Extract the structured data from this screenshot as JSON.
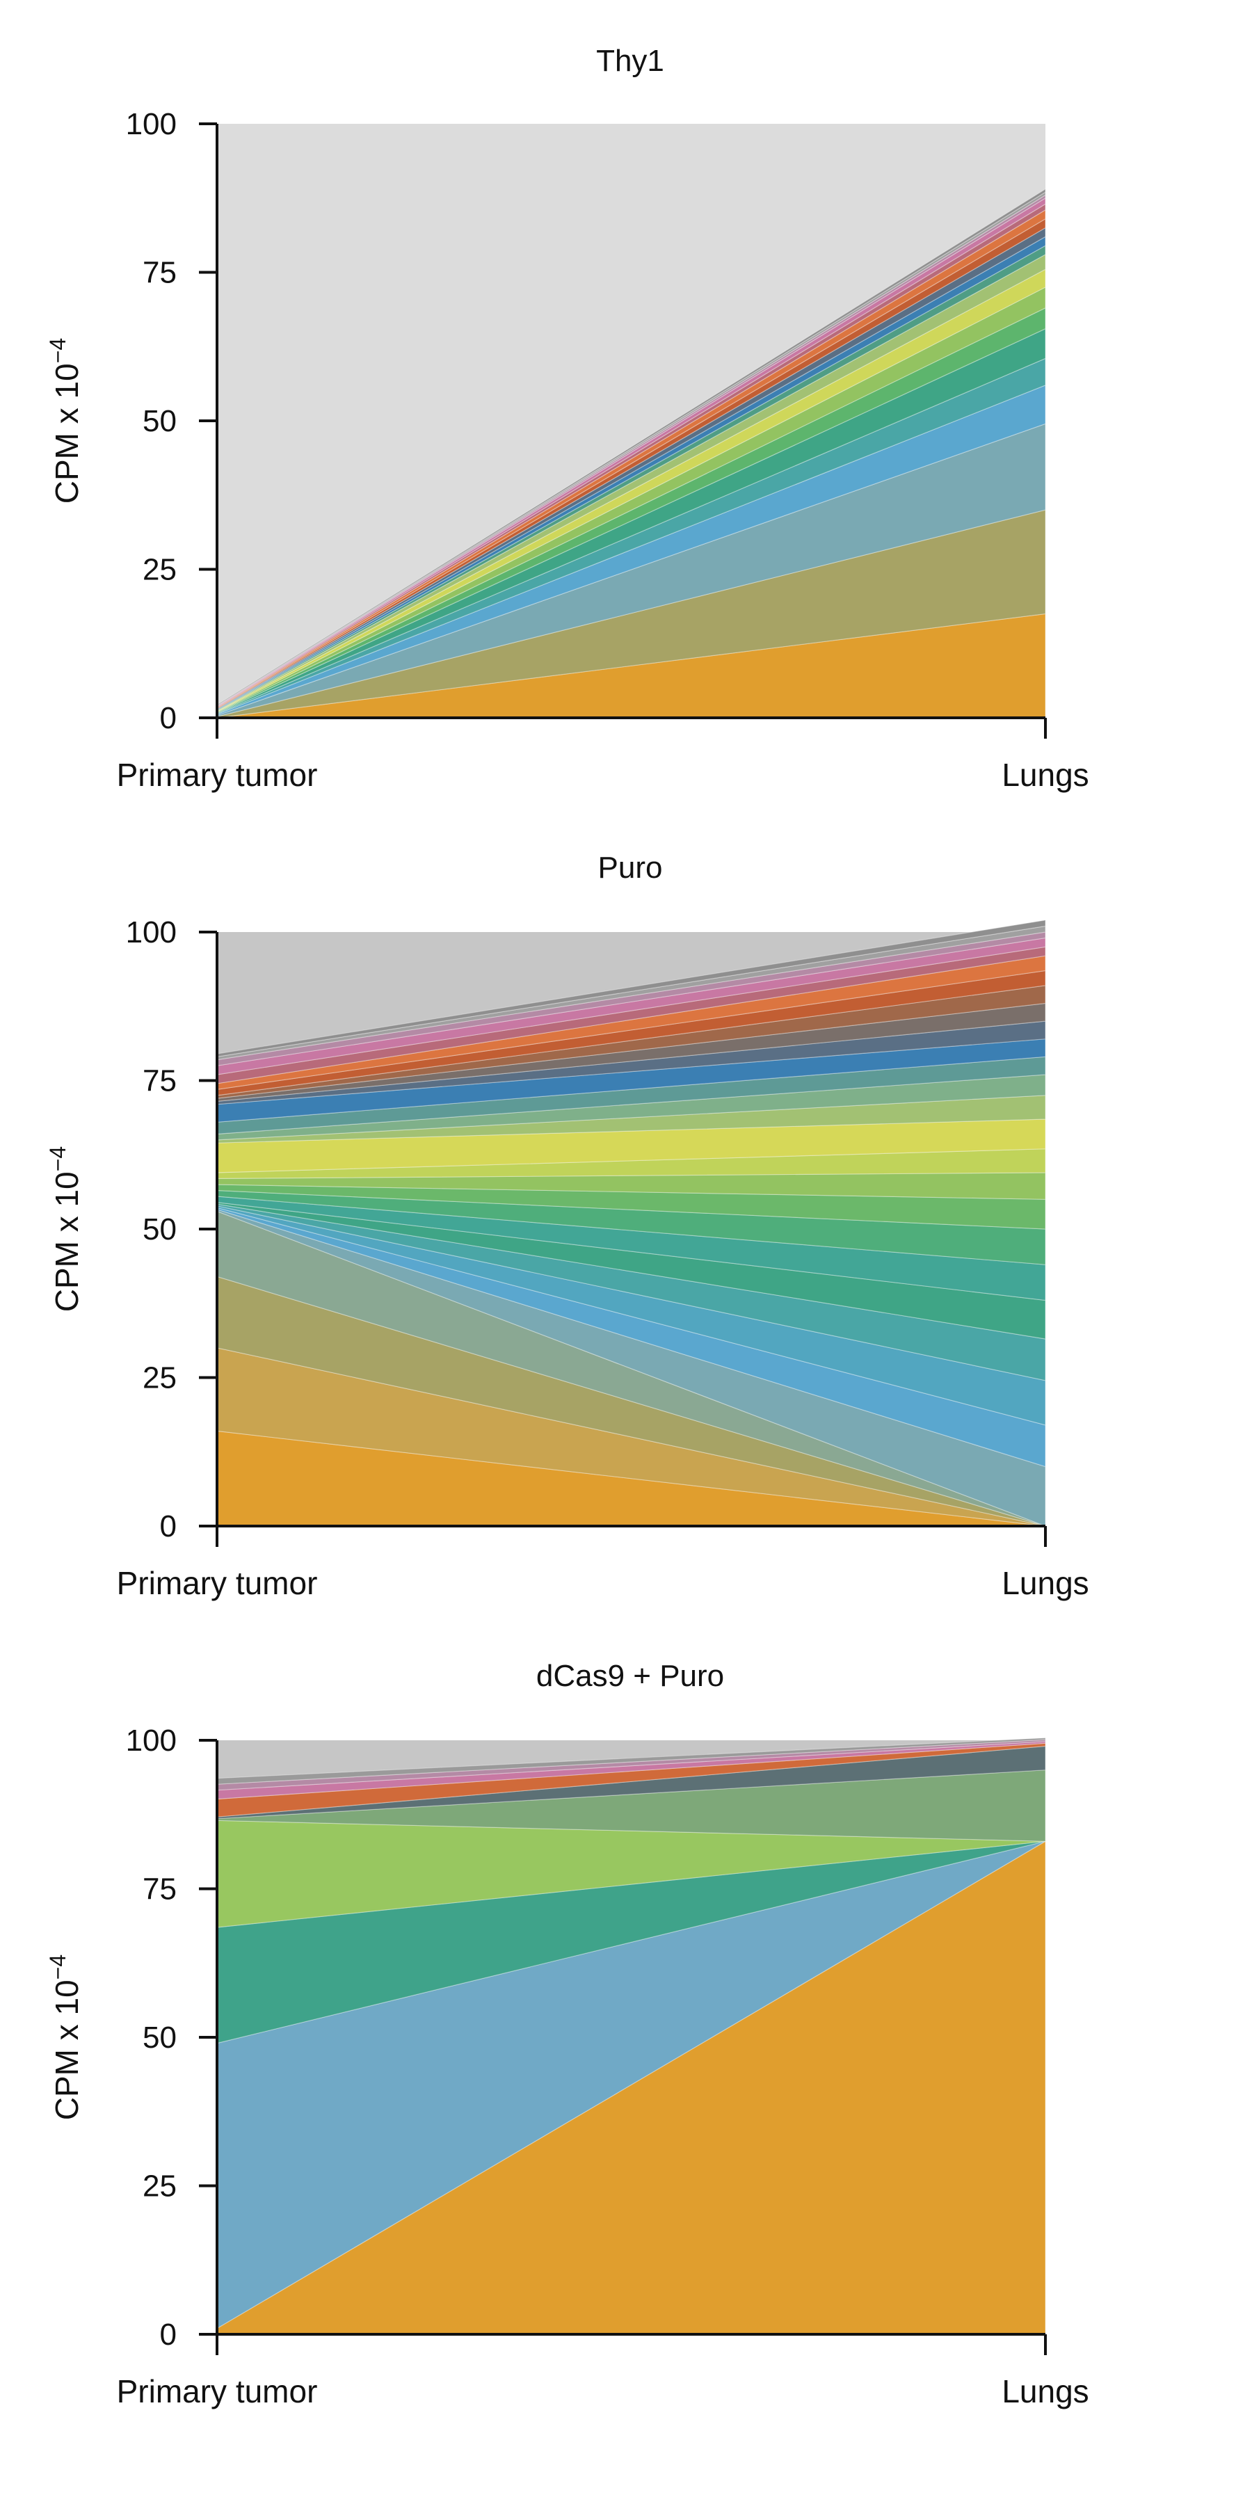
{
  "chart_data": [
    {
      "type": "area",
      "title": "Thy1",
      "ylabel": "CPM x 10",
      "ylabel_exponent": "−4",
      "categories": [
        "Primary tumor",
        "Lungs"
      ],
      "ylim": [
        0,
        100
      ],
      "yticks": [
        "0",
        "25",
        "50",
        "75",
        "100"
      ],
      "grid": false,
      "background": "#dcdcdc",
      "series": [
        {
          "values": [
            0.0,
            17.5
          ],
          "color": "#e09e2e"
        },
        {
          "values": [
            0.2,
            17.5
          ],
          "color": "#a7a365"
        },
        {
          "values": [
            0.2,
            14.5
          ],
          "color": "#7aa9b3"
        },
        {
          "values": [
            0.2,
            6.5
          ],
          "color": "#5aa7cf"
        },
        {
          "values": [
            0.1,
            4.5
          ],
          "color": "#4aa6a6"
        },
        {
          "values": [
            0.1,
            5.0
          ],
          "color": "#3fa586"
        },
        {
          "values": [
            0.1,
            3.5
          ],
          "color": "#5db56d"
        },
        {
          "values": [
            0.1,
            3.5
          ],
          "color": "#93c361"
        },
        {
          "values": [
            0.1,
            3.0
          ],
          "color": "#cfd75a"
        },
        {
          "values": [
            0.1,
            2.5
          ],
          "color": "#a2c173"
        },
        {
          "values": [
            0.1,
            1.5
          ],
          "color": "#4f9d85"
        },
        {
          "values": [
            0.1,
            1.5
          ],
          "color": "#3b7fb3"
        },
        {
          "values": [
            0.1,
            1.5
          ],
          "color": "#5a6f85"
        },
        {
          "values": [
            0.1,
            1.5
          ],
          "color": "#c25e33"
        },
        {
          "values": [
            0.1,
            1.5
          ],
          "color": "#dc7540"
        },
        {
          "values": [
            0.1,
            1.0
          ],
          "color": "#b86a7a"
        },
        {
          "values": [
            0.1,
            1.0
          ],
          "color": "#c878a3"
        },
        {
          "values": [
            0.1,
            0.5
          ],
          "color": "#b48aa5"
        },
        {
          "values": [
            0.1,
            0.5
          ],
          "color": "#a0a0a0"
        },
        {
          "values": [
            0.1,
            0.5
          ],
          "color": "#8f8f8f"
        }
      ]
    },
    {
      "type": "area",
      "title": "Puro",
      "ylabel": "CPM x 10",
      "ylabel_exponent": "−4",
      "categories": [
        "Primary tumor",
        "Lungs"
      ],
      "ylim": [
        0,
        100
      ],
      "yticks": [
        "0",
        "25",
        "50",
        "75",
        "100"
      ],
      "grid": false,
      "background": "#c6c6c6",
      "series": [
        {
          "values": [
            16.0,
            0.0
          ],
          "color": "#e09e2e"
        },
        {
          "values": [
            14.0,
            0.0
          ],
          "color": "#c9a450"
        },
        {
          "values": [
            12.0,
            0.0
          ],
          "color": "#a7a365"
        },
        {
          "values": [
            11.0,
            0.0
          ],
          "color": "#8aa893"
        },
        {
          "values": [
            0.3,
            10.0
          ],
          "color": "#7aa9b3"
        },
        {
          "values": [
            0.3,
            7.0
          ],
          "color": "#5aa7cf"
        },
        {
          "values": [
            0.3,
            7.5
          ],
          "color": "#52a6c0"
        },
        {
          "values": [
            0.3,
            7.0
          ],
          "color": "#4aa6a6"
        },
        {
          "values": [
            0.3,
            6.5
          ],
          "color": "#3fa586"
        },
        {
          "values": [
            1.0,
            6.0
          ],
          "color": "#42a696"
        },
        {
          "values": [
            1.0,
            6.0
          ],
          "color": "#4fae7b"
        },
        {
          "values": [
            1.0,
            5.0
          ],
          "color": "#6bb86a"
        },
        {
          "values": [
            1.0,
            4.5
          ],
          "color": "#93c361"
        },
        {
          "values": [
            1.0,
            4.0
          ],
          "color": "#c0d35a"
        },
        {
          "values": [
            5.0,
            5.0
          ],
          "color": "#d6d858"
        },
        {
          "values": [
            0.5,
            4.0
          ],
          "color": "#a2c173"
        },
        {
          "values": [
            1.0,
            3.5
          ],
          "color": "#7fb08a"
        },
        {
          "values": [
            2.0,
            3.0
          ],
          "color": "#5e9a96"
        },
        {
          "values": [
            3.0,
            3.0
          ],
          "color": "#3b7fb3"
        },
        {
          "values": [
            0.5,
            3.0
          ],
          "color": "#5a6f85"
        },
        {
          "values": [
            0.5,
            3.0
          ],
          "color": "#7a6f6a"
        },
        {
          "values": [
            0.5,
            3.0
          ],
          "color": "#a0684a"
        },
        {
          "values": [
            1.0,
            2.5
          ],
          "color": "#c25e33"
        },
        {
          "values": [
            1.0,
            2.5
          ],
          "color": "#dc7540"
        },
        {
          "values": [
            1.5,
            1.5
          ],
          "color": "#b86a7a"
        },
        {
          "values": [
            1.5,
            1.5
          ],
          "color": "#c878a3"
        },
        {
          "values": [
            1.0,
            1.0
          ],
          "color": "#b48aa5"
        },
        {
          "values": [
            0.5,
            1.0
          ],
          "color": "#a0a0a0"
        },
        {
          "values": [
            0.5,
            1.0
          ],
          "color": "#8f8f8f"
        }
      ]
    },
    {
      "type": "area",
      "title": "dCas9 + Puro",
      "ylabel": "CPM x 10",
      "ylabel_exponent": "−4",
      "categories": [
        "Primary tumor",
        "Lungs"
      ],
      "ylim": [
        0,
        100
      ],
      "yticks": [
        "0",
        "25",
        "50",
        "75",
        "100"
      ],
      "grid": false,
      "background": "#c6c6c6",
      "series": [
        {
          "values": [
            1.0,
            83.0
          ],
          "color": "#e09e2e"
        },
        {
          "values": [
            48.0,
            0.0
          ],
          "color": "#70a9c6"
        },
        {
          "values": [
            19.5,
            0.0
          ],
          "color": "#3fa38a"
        },
        {
          "values": [
            18.0,
            0.0
          ],
          "color": "#98c760"
        },
        {
          "values": [
            0.3,
            12.0
          ],
          "color": "#7ea879"
        },
        {
          "values": [
            0.3,
            4.0
          ],
          "color": "#5c7075"
        },
        {
          "values": [
            3.0,
            0.5
          ],
          "color": "#d06a3a"
        },
        {
          "values": [
            1.5,
            0.3
          ],
          "color": "#c878a3"
        },
        {
          "values": [
            1.0,
            0.3
          ],
          "color": "#b48aa5"
        },
        {
          "values": [
            1.0,
            0.3
          ],
          "color": "#9a9a9a"
        }
      ]
    }
  ]
}
